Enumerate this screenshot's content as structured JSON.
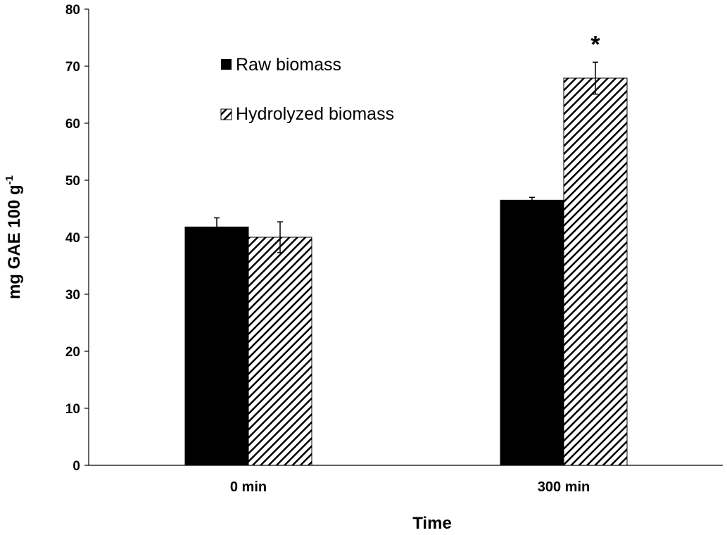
{
  "chart_data": {
    "type": "bar",
    "categories": [
      "0 min",
      "300 min"
    ],
    "series": [
      {
        "name": "Raw biomass",
        "values": [
          41.8,
          46.5
        ],
        "errors": [
          1.6,
          0.5
        ],
        "fill": "solid",
        "color": "#000000"
      },
      {
        "name": "Hydrolyzed biomass",
        "values": [
          40.0,
          67.9
        ],
        "errors": [
          2.7,
          2.8
        ],
        "fill": "hatched",
        "color": "#000000"
      }
    ],
    "title": "",
    "xlabel": "Time",
    "ylabel": "mg GAE 100 g",
    "ylabel_superscript": "-1",
    "ylim": [
      0,
      80
    ],
    "yticks": [
      "0",
      "10",
      "20",
      "30",
      "40",
      "50",
      "60",
      "70",
      "80"
    ],
    "grid": false,
    "legend_position": "top-left",
    "annotations": [
      {
        "text": "*",
        "category": "300 min",
        "series": "Hydrolyzed biomass"
      }
    ]
  }
}
